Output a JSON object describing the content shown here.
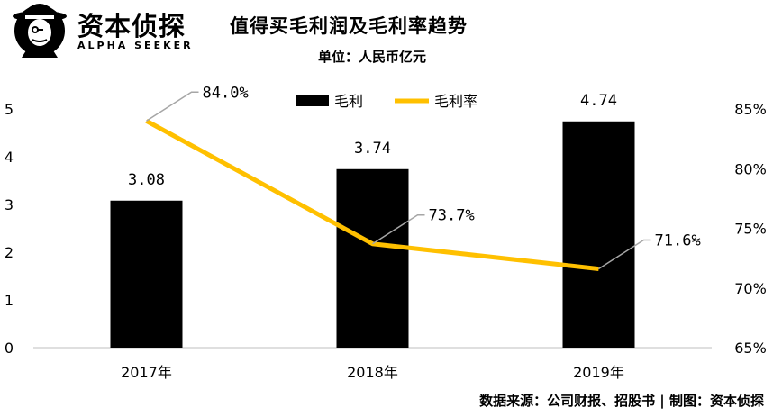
{
  "brand": {
    "name": "资本侦探",
    "tagline": "ALPHA SEEKER"
  },
  "header": {
    "title": "值得买毛利润及毛利率趋势",
    "subtitle": "单位：人民币亿元"
  },
  "footer": {
    "source": "数据来源：公司财报、招股书 | 制图：资本侦探"
  },
  "colors": {
    "bar": "#000000",
    "line": "#FFC000",
    "leader": "#A6A6A6",
    "axis": "#BFBFBF"
  },
  "chart_data": {
    "type": "bar",
    "categories": [
      "2017年",
      "2018年",
      "2019年"
    ],
    "series": [
      {
        "name": "毛利",
        "kind": "bar",
        "axis": "left",
        "values": [
          3.08,
          3.74,
          4.74
        ],
        "labels": [
          "3.08",
          "3.74",
          "4.74"
        ]
      },
      {
        "name": "毛利率",
        "kind": "line",
        "axis": "right",
        "values": [
          84.0,
          73.7,
          71.6
        ],
        "labels": [
          "84.0%",
          "73.7%",
          "71.6%"
        ]
      }
    ],
    "y_left": {
      "min": 0,
      "max": 5,
      "ticks": [
        "0",
        "1",
        "2",
        "3",
        "4",
        "5"
      ]
    },
    "y_right": {
      "min": 65,
      "max": 85,
      "ticks": [
        "65%",
        "70%",
        "75%",
        "80%",
        "85%"
      ]
    },
    "legend_position": "top-center",
    "grid": false
  }
}
